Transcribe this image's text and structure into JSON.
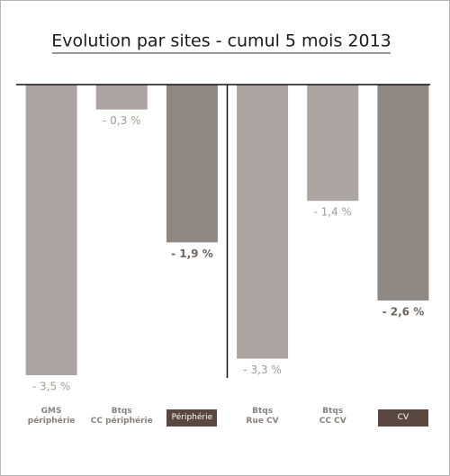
{
  "chart_data": {
    "type": "bar",
    "title": "Evolution par sites - cumul 5 mois 2013",
    "categories": [
      "GMS\npériphérie",
      "Btqs\nCC périphérie",
      "Périphérie",
      "Btqs\nRue CV",
      "Btqs\nCC CV",
      "CV"
    ],
    "values": [
      -3.5,
      -0.3,
      -1.9,
      -3.3,
      -1.4,
      -2.6
    ],
    "value_labels": [
      "- 3,5 %",
      "- 0,3 %",
      "- 1,9 %",
      "- 3,3 %",
      "- 1,4 %",
      "- 2,6 %"
    ],
    "colors": [
      "#aba4a0",
      "#aba4a0",
      "#8f8782",
      "#aba4a0",
      "#aba4a0",
      "#8f8782"
    ],
    "category_styles": [
      "plain",
      "plain",
      "boxed",
      "plain",
      "plain",
      "boxed"
    ],
    "ylim": [
      -3.5,
      0
    ]
  }
}
